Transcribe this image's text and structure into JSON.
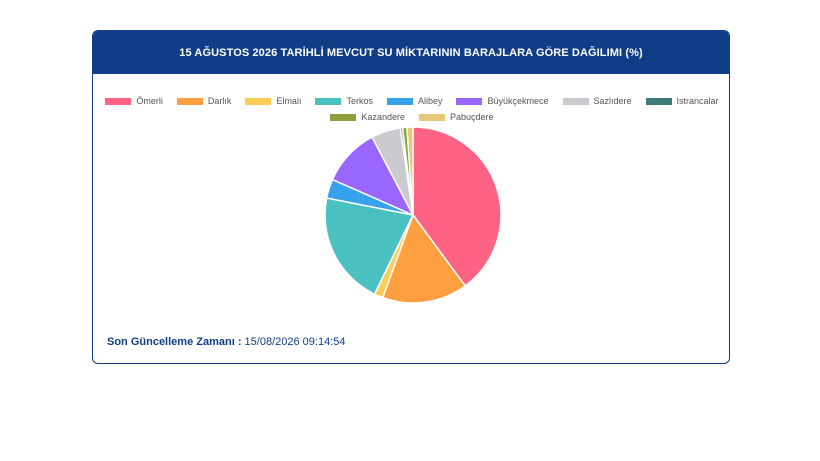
{
  "header": {
    "title": "15 AĞUSTOS 2026 TARİHLİ MEVCUT SU MİKTARININ BARAJLARA GÖRE DAĞILIMI (%)"
  },
  "footer": {
    "label": "Son Güncelleme Zamanı :",
    "value": "15/08/2026 09:14:54"
  },
  "chart_data": {
    "type": "pie",
    "title": "15 AĞUSTOS 2026 TARİHLİ MEVCUT SU MİKTARININ BARAJLARA GÖRE DAĞILIMI (%)",
    "legend_position": "top",
    "start_angle_deg": 0,
    "direction": "clockwise",
    "slices": [
      {
        "label": "Ömerli",
        "value": 39.9,
        "color": "#ff6384"
      },
      {
        "label": "Darlık",
        "value": 15.7,
        "color": "#ff9f40"
      },
      {
        "label": "Elmalı",
        "value": 1.6,
        "color": "#ffcd56"
      },
      {
        "label": "Terkos",
        "value": 20.9,
        "color": "#4bc0c0"
      },
      {
        "label": "Alibey",
        "value": 3.5,
        "color": "#36a2eb"
      },
      {
        "label": "Büyükçekmece",
        "value": 10.7,
        "color": "#9966ff"
      },
      {
        "label": "Sazlıdere",
        "value": 5.4,
        "color": "#c9cbcf"
      },
      {
        "label": "Istrancalar",
        "value": 0.4,
        "color": "#3d7b7b"
      },
      {
        "label": "Kazandere",
        "value": 0.8,
        "color": "#8e9e3a"
      },
      {
        "label": "Pabuçdere",
        "value": 1.1,
        "color": "#e8c77a"
      }
    ]
  }
}
